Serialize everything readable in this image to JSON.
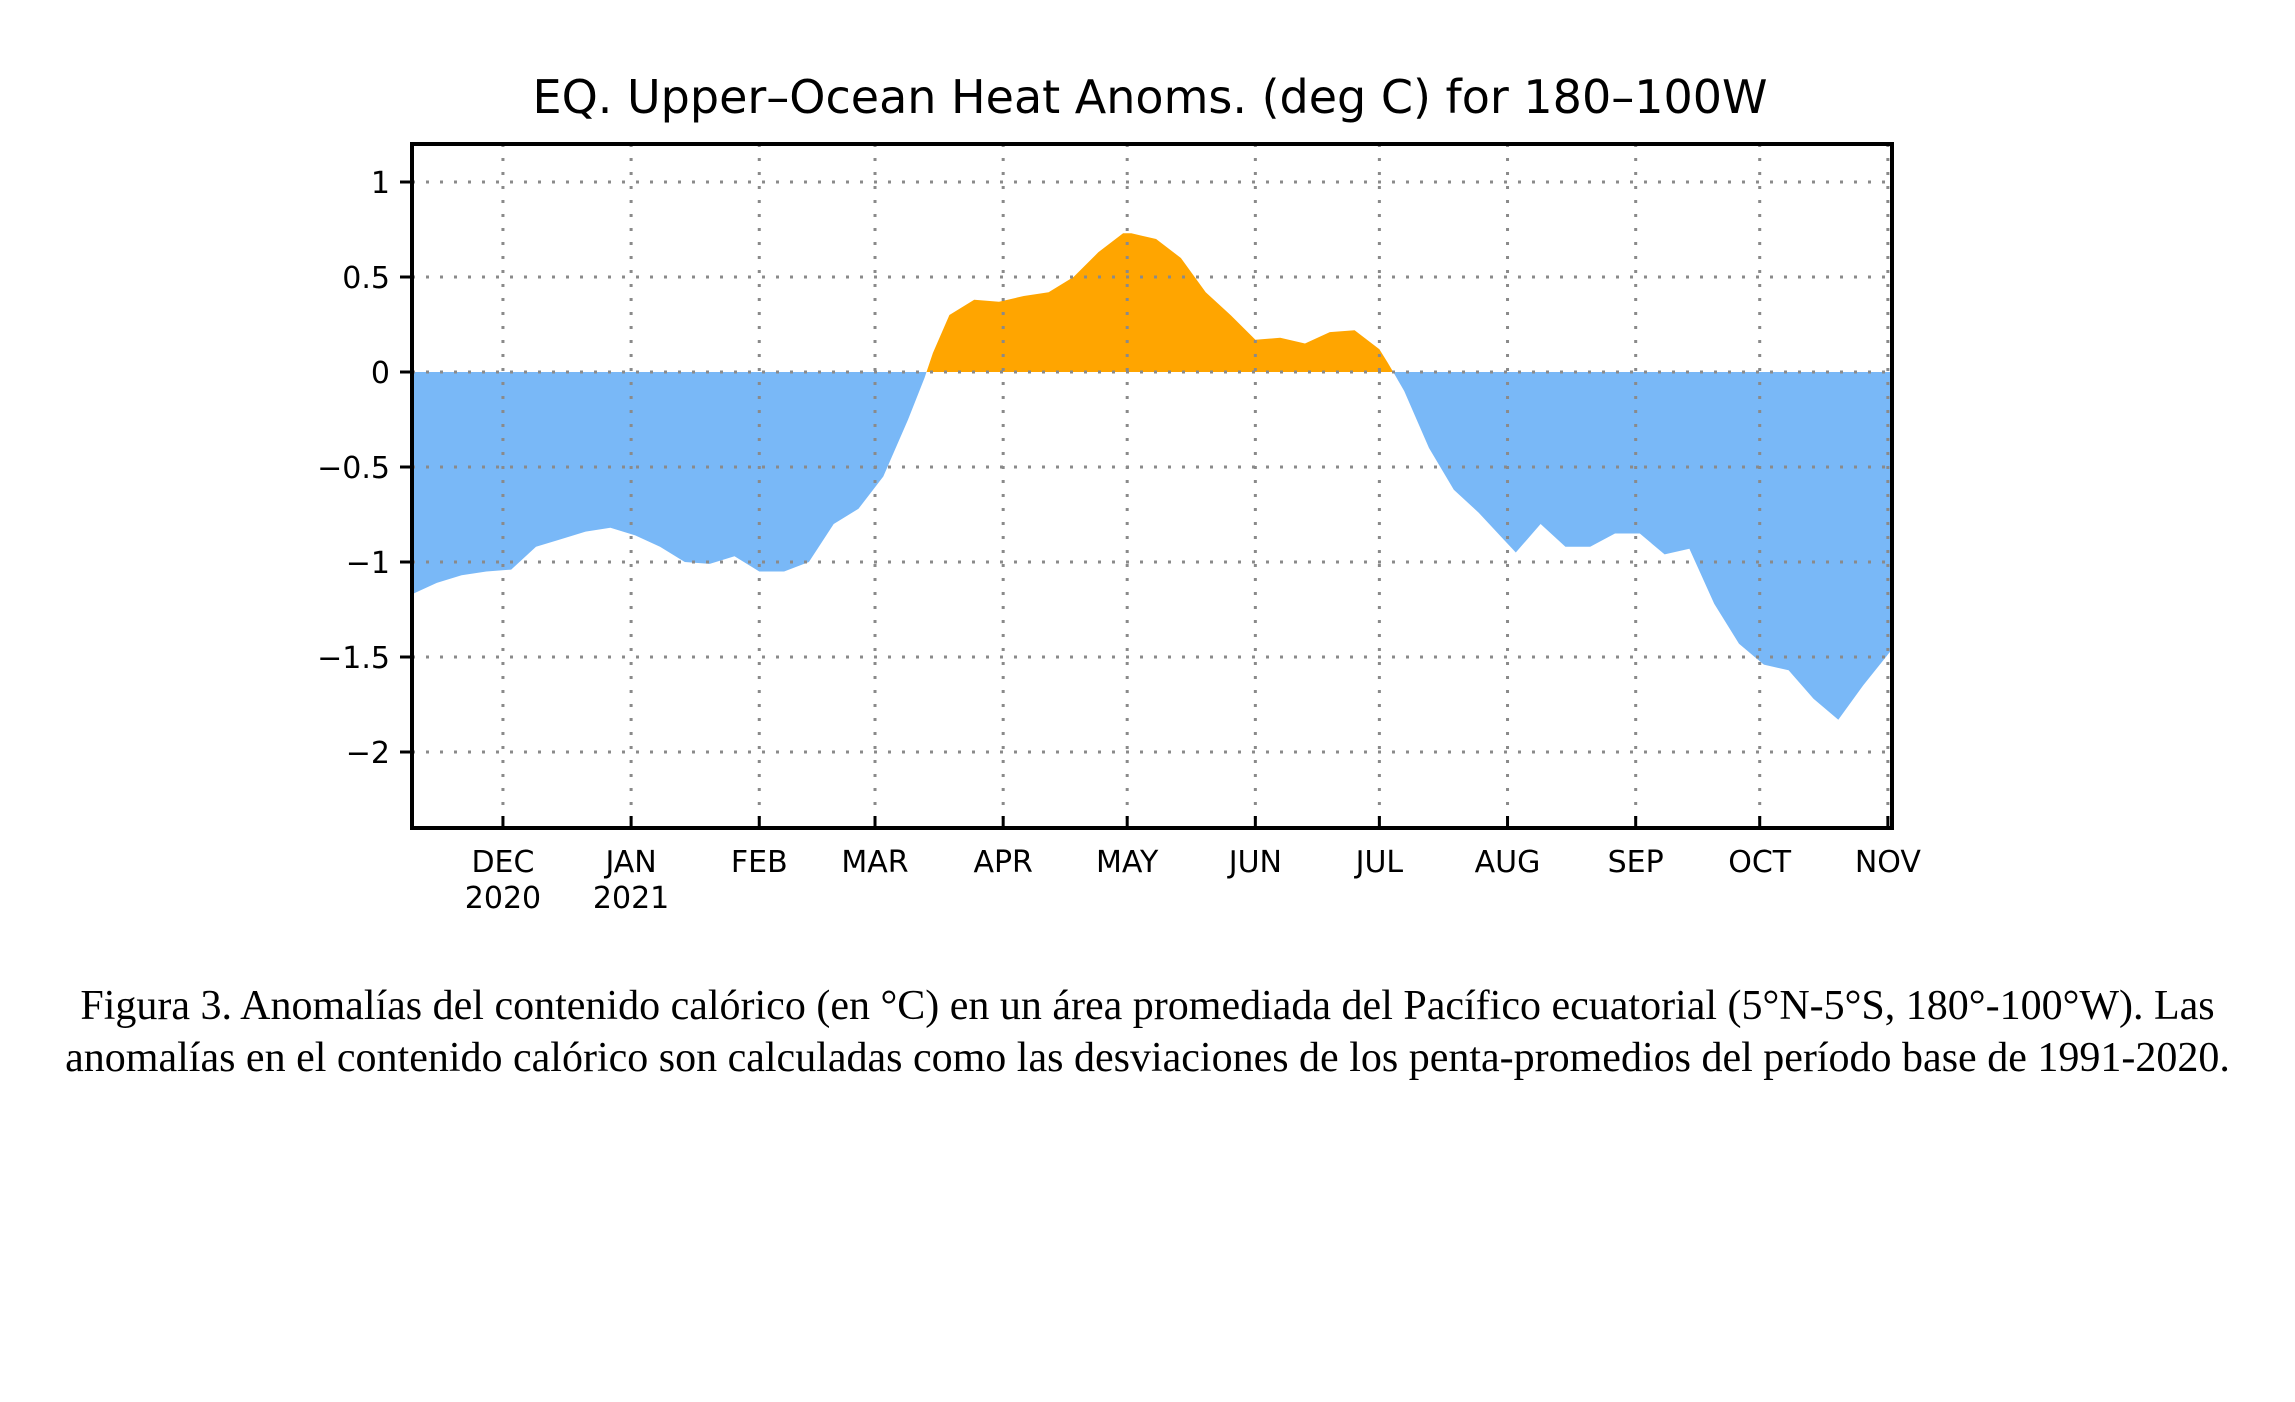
{
  "chart_data": {
    "type": "area",
    "title": "EQ. Upper–Ocean Heat Anoms. (deg C) for 180–100W",
    "xlabel": "",
    "ylabel": "",
    "ylim": [
      -2.4,
      1.2
    ],
    "yticks": [
      1,
      0.5,
      0,
      -0.5,
      -1,
      -1.5,
      -2
    ],
    "ytick_labels": [
      "1",
      "0.5",
      "0",
      "−0.5",
      "−1",
      "−1.5",
      "−2"
    ],
    "xlim": [
      "2020-11-09",
      "2021-11-02"
    ],
    "xticks": [
      {
        "date": "2020-12-01",
        "label": "DEC",
        "year": "2020"
      },
      {
        "date": "2021-01-01",
        "label": "JAN",
        "year": "2021"
      },
      {
        "date": "2021-02-01",
        "label": "FEB",
        "year": ""
      },
      {
        "date": "2021-03-01",
        "label": "MAR",
        "year": ""
      },
      {
        "date": "2021-04-01",
        "label": "APR",
        "year": ""
      },
      {
        "date": "2021-05-01",
        "label": "MAY",
        "year": ""
      },
      {
        "date": "2021-06-01",
        "label": "JUN",
        "year": ""
      },
      {
        "date": "2021-07-01",
        "label": "JUL",
        "year": ""
      },
      {
        "date": "2021-08-01",
        "label": "AUG",
        "year": ""
      },
      {
        "date": "2021-09-01",
        "label": "SEP",
        "year": ""
      },
      {
        "date": "2021-10-01",
        "label": "OCT",
        "year": ""
      },
      {
        "date": "2021-11-01",
        "label": "NOV",
        "year": ""
      }
    ],
    "grid": true,
    "colors": {
      "positive": "#ffa500",
      "negative": "#79b8f7"
    },
    "series": [
      {
        "x": [
          "2020-11-09",
          "2020-11-15",
          "2020-11-21",
          "2020-11-27",
          "2020-12-03",
          "2020-12-09",
          "2020-12-15",
          "2020-12-21",
          "2020-12-27",
          "2021-01-02",
          "2021-01-08",
          "2021-01-14",
          "2021-01-20",
          "2021-01-26",
          "2021-02-01",
          "2021-02-07",
          "2021-02-13",
          "2021-02-19",
          "2021-02-25",
          "2021-03-03",
          "2021-03-09",
          "2021-03-13",
          "2021-03-15",
          "2021-03-19",
          "2021-03-25",
          "2021-03-31",
          "2021-04-06",
          "2021-04-12",
          "2021-04-18",
          "2021-04-24",
          "2021-04-30",
          "2021-05-02",
          "2021-05-08",
          "2021-05-14",
          "2021-05-20",
          "2021-05-26",
          "2021-06-01",
          "2021-06-07",
          "2021-06-13",
          "2021-06-19",
          "2021-06-25",
          "2021-07-01",
          "2021-07-03",
          "2021-07-07",
          "2021-07-13",
          "2021-07-19",
          "2021-07-25",
          "2021-07-31",
          "2021-08-03",
          "2021-08-09",
          "2021-08-15",
          "2021-08-21",
          "2021-08-27",
          "2021-09-02",
          "2021-09-08",
          "2021-09-14",
          "2021-09-20",
          "2021-09-26",
          "2021-10-02",
          "2021-10-08",
          "2021-10-14",
          "2021-10-20",
          "2021-10-26",
          "2021-11-02"
        ],
        "values": [
          -1.17,
          -1.11,
          -1.07,
          -1.05,
          -1.04,
          -0.92,
          -0.88,
          -0.84,
          -0.82,
          -0.86,
          -0.92,
          -1.0,
          -1.01,
          -0.97,
          -1.05,
          -1.05,
          -1.0,
          -0.8,
          -0.72,
          -0.55,
          -0.25,
          -0.03,
          0.1,
          0.3,
          0.38,
          0.37,
          0.4,
          0.42,
          0.5,
          0.63,
          0.73,
          0.73,
          0.7,
          0.6,
          0.42,
          0.3,
          0.17,
          0.18,
          0.15,
          0.21,
          0.22,
          0.12,
          0.05,
          -0.1,
          -0.4,
          -0.62,
          -0.74,
          -0.88,
          -0.95,
          -0.8,
          -0.92,
          -0.92,
          -0.85,
          -0.85,
          -0.96,
          -0.93,
          -1.22,
          -1.43,
          -1.54,
          -1.57,
          -1.72,
          -1.83,
          -1.65,
          -1.46
        ]
      }
    ]
  },
  "caption": "Figura 3. Anomalías del contenido calórico (en °C) en un área promediada del Pacífico ecuatorial (5°N-5°S, 180°-100°W). Las anomalías en el contenido calórico son calculadas como las desviaciones de los penta-promedios del período base de 1991-2020."
}
